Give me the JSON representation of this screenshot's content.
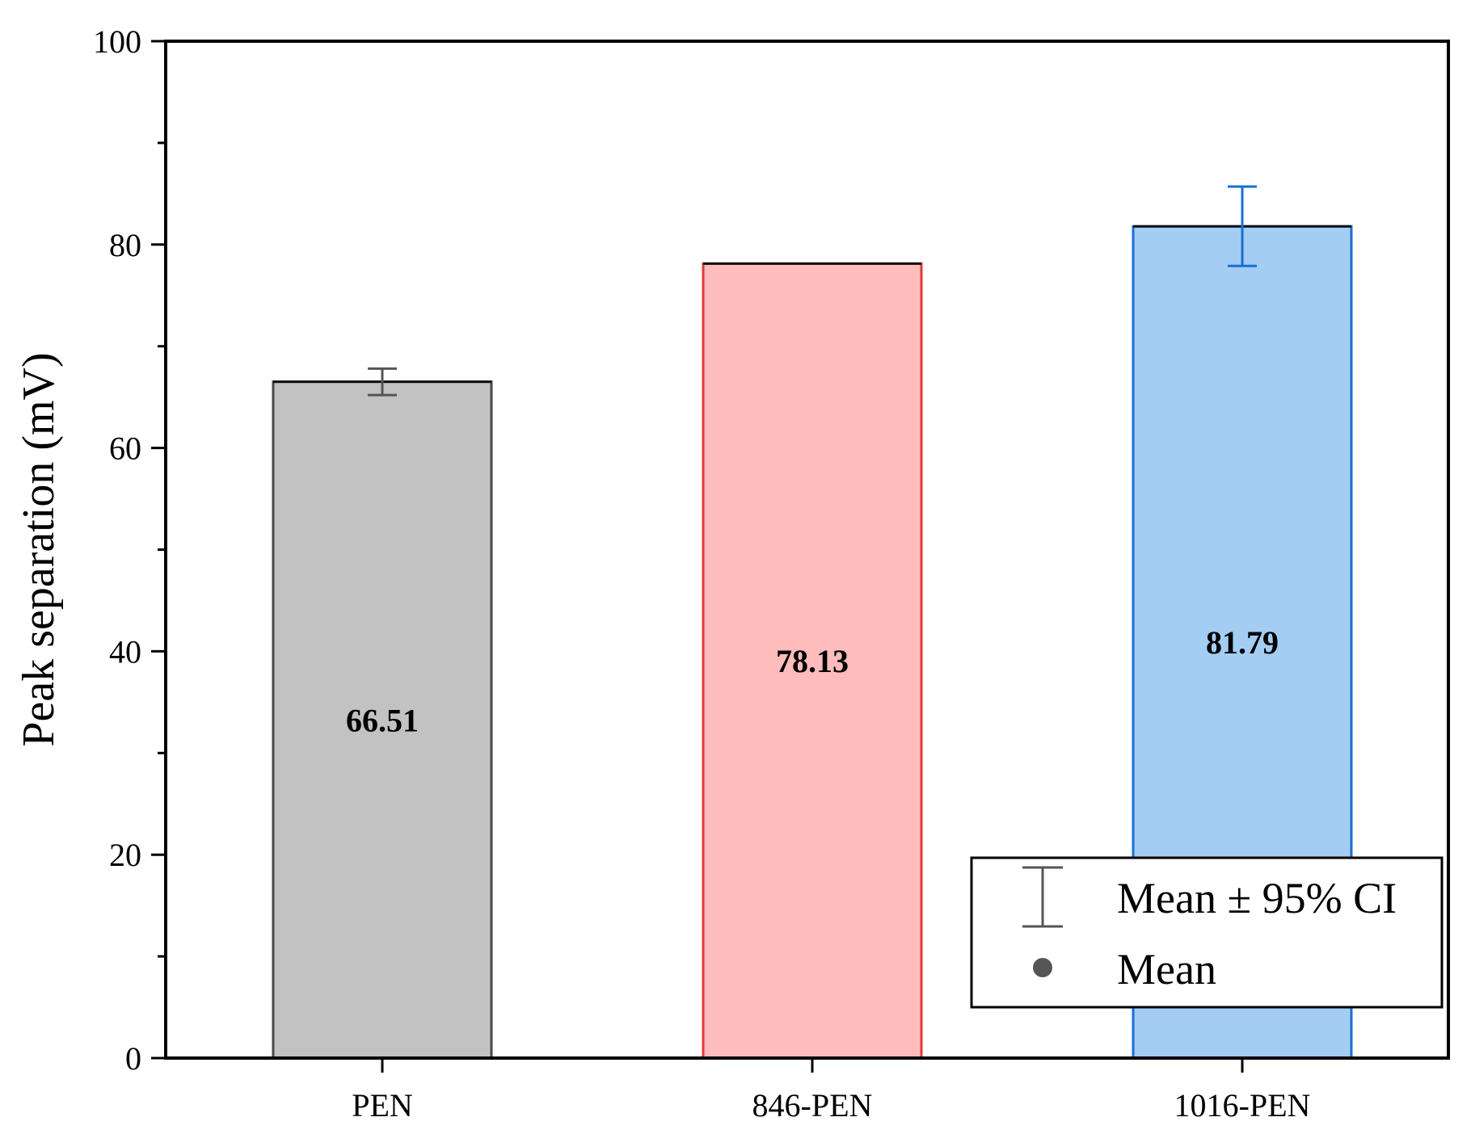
{
  "chart_data": {
    "type": "bar",
    "categories": [
      "PEN",
      "846-PEN",
      "1016-PEN"
    ],
    "values": [
      66.51,
      78.13,
      81.79
    ],
    "data_labels": [
      "66.51",
      "78.13",
      "81.79"
    ],
    "error_bars": [
      {
        "low": 65.2,
        "high": 67.8
      },
      null,
      {
        "low": 77.9,
        "high": 85.7
      }
    ],
    "ylabel": "Peak separation (mV)",
    "xlabel": "",
    "ylim": [
      0,
      100
    ],
    "yticks": [
      0,
      20,
      40,
      60,
      80,
      100
    ],
    "yticks_minor": [
      10,
      30,
      50,
      70,
      90
    ],
    "grid": false,
    "legend": {
      "placement": "bottom-right",
      "entries": [
        {
          "label": "Mean ± 95% CI",
          "symbol": "error-bar-icon"
        },
        {
          "label": "Mean",
          "symbol": "dot-icon"
        }
      ]
    },
    "colors": {
      "fills": [
        "#c2c2c2",
        "#ffbcbc",
        "#a3cdf3"
      ],
      "strokes": [
        "#4a4a4a",
        "#e43a3a",
        "#1a6fd4"
      ],
      "error_bar_colors": [
        "#555555",
        "#e43a3a",
        "#1a6fd4"
      ],
      "legend_symbol": "#555555"
    }
  }
}
